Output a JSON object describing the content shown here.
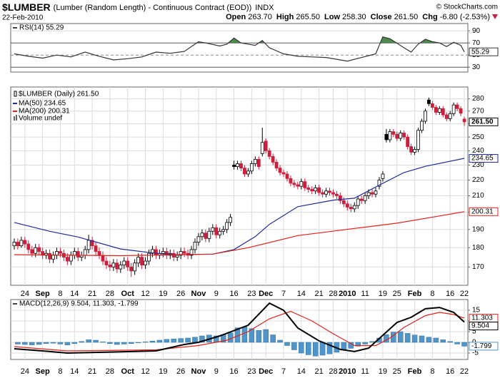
{
  "header": {
    "symbol": "$LUMBER",
    "name": "(Lumber (Random Length) - Continuous Contract (EOD))",
    "exchange": "INDX",
    "date": "22-Feb-2010",
    "copyright": "© StockCharts.com",
    "quote": [
      {
        "label": "Open",
        "value": "263.70"
      },
      {
        "label": "High",
        "value": "265.50"
      },
      {
        "label": "Low",
        "value": "258.30"
      },
      {
        "label": "Close",
        "value": "261.50"
      },
      {
        "label": "Chg",
        "value": "-6.80 (-2.53%)"
      }
    ]
  },
  "chart_data": [
    {
      "type": "line",
      "label": "RSI(14) 55.29",
      "xlim": [
        -1,
        128
      ],
      "ylim": [
        22,
        102
      ],
      "yticks": [
        90,
        70,
        50,
        30
      ],
      "grid": true,
      "vgrid": false,
      "overbought": 70,
      "oversold": 30,
      "fill_color": "#4f8a4f",
      "series": [
        {
          "color": "#333333",
          "x": [
            0,
            4,
            8,
            12,
            16,
            20,
            24,
            28,
            32,
            36,
            40,
            44,
            48,
            52,
            54,
            58,
            60,
            62,
            64,
            68,
            70,
            72,
            76,
            80,
            84,
            88,
            92,
            94,
            98,
            102,
            104,
            106,
            110,
            112,
            114,
            116,
            118,
            120,
            122,
            124,
            126,
            127
          ],
          "values": [
            52,
            48,
            45,
            50,
            47,
            55,
            48,
            42,
            44,
            47,
            55,
            53,
            56,
            72,
            70,
            65,
            68,
            78,
            70,
            66,
            74,
            62,
            52,
            48,
            47,
            46,
            42,
            40,
            46,
            52,
            80,
            77,
            62,
            55,
            68,
            76,
            72,
            70,
            64,
            71,
            66,
            55.29
          ]
        }
      ]
    },
    {
      "type": "candlestick",
      "label": "$LUMBER (Daily) 261.50",
      "volume_label": "Volume undef",
      "xlim": [
        -1,
        128
      ],
      "ylim": [
        161,
        290
      ],
      "log": true,
      "yticks": [
        170,
        180,
        190,
        200,
        210,
        220,
        230,
        240,
        250,
        260,
        270,
        280
      ],
      "grid": true,
      "vgrid": true,
      "up_color": "#000000",
      "down_color": "#cc1f3c",
      "close_label": "261.50",
      "xticks": [
        {
          "value": 3,
          "label": "24"
        },
        {
          "value": 8,
          "label": "Sep",
          "major": true
        },
        {
          "value": 13,
          "label": "8"
        },
        {
          "value": 17,
          "label": "14"
        },
        {
          "value": 22,
          "label": "21"
        },
        {
          "value": 27,
          "label": "28"
        },
        {
          "value": 32,
          "label": "Oct",
          "major": true
        },
        {
          "value": 37,
          "label": "12"
        },
        {
          "value": 42,
          "label": "19"
        },
        {
          "value": 47,
          "label": "26"
        },
        {
          "value": 52,
          "label": "Nov",
          "major": true
        },
        {
          "value": 57,
          "label": "9"
        },
        {
          "value": 62,
          "label": "16"
        },
        {
          "value": 67,
          "label": "23"
        },
        {
          "value": 71,
          "label": "Dec",
          "major": true
        },
        {
          "value": 76,
          "label": "7"
        },
        {
          "value": 81,
          "label": "14"
        },
        {
          "value": 86,
          "label": "21"
        },
        {
          "value": 90,
          "label": "28"
        },
        {
          "value": 94,
          "label": "2010",
          "major": true
        },
        {
          "value": 99,
          "label": "11"
        },
        {
          "value": 104,
          "label": "19"
        },
        {
          "value": 108,
          "label": "25"
        },
        {
          "value": 113,
          "label": "Feb",
          "major": true
        },
        {
          "value": 118,
          "label": "8"
        },
        {
          "value": 123,
          "label": "16"
        },
        {
          "value": 127,
          "label": "22"
        }
      ],
      "open": [
        181,
        183,
        181,
        184,
        182,
        179,
        177,
        180,
        178,
        176,
        177,
        174,
        176,
        178,
        177,
        175,
        173,
        176,
        178,
        175,
        176,
        179,
        184,
        181,
        178,
        176,
        173,
        171,
        170,
        172,
        169,
        171,
        173,
        170,
        168,
        172,
        175,
        171,
        173,
        177,
        179,
        176,
        177,
        178,
        176,
        177,
        175,
        176,
        178,
        177,
        176,
        179,
        183,
        186,
        188,
        185,
        189,
        191,
        187,
        189,
        190,
        194,
        230,
        229,
        231,
        228,
        224,
        226,
        231,
        234,
        238,
        247,
        240,
        236,
        232,
        228,
        225,
        224,
        221,
        218,
        217,
        216,
        219,
        215,
        214,
        213,
        215,
        212,
        211,
        213,
        212,
        211,
        210,
        207,
        205,
        203,
        202,
        204,
        208,
        207,
        210,
        212,
        211,
        216,
        221,
        252,
        248,
        254,
        252,
        249,
        253,
        250,
        243,
        239,
        241,
        255,
        262,
        279,
        276,
        273,
        269,
        272,
        267,
        264,
        268,
        275,
        272,
        263.7
      ],
      "high": [
        185,
        185,
        186,
        186,
        184,
        181,
        182,
        182,
        180,
        179,
        179,
        178,
        180,
        180,
        179,
        177,
        178,
        180,
        180,
        178,
        181,
        187,
        186,
        183,
        180,
        178,
        175,
        173,
        174,
        174,
        173,
        175,
        175,
        172,
        174,
        177,
        177,
        175,
        179,
        181,
        181,
        179,
        180,
        180,
        179,
        179,
        178,
        180,
        180,
        179,
        181,
        185,
        188,
        190,
        190,
        191,
        193,
        193,
        191,
        192,
        196,
        199,
        233,
        233,
        233,
        230,
        228,
        233,
        236,
        236,
        257,
        249,
        242,
        238,
        234,
        230,
        227,
        226,
        223,
        220,
        219,
        221,
        221,
        217,
        216,
        217,
        217,
        214,
        215,
        215,
        214,
        213,
        212,
        209,
        207,
        205,
        206,
        210,
        210,
        212,
        214,
        214,
        215,
        222,
        226,
        256,
        256,
        256,
        254,
        255,
        255,
        252,
        245,
        243,
        257,
        264,
        272,
        281,
        278,
        275,
        274,
        274,
        269,
        270,
        277,
        277,
        274,
        265.5
      ],
      "low": [
        179,
        179,
        180,
        180,
        177,
        175,
        175,
        176,
        174,
        174,
        172,
        172,
        174,
        175,
        173,
        171,
        171,
        174,
        173,
        173,
        174,
        177,
        179,
        176,
        174,
        171,
        169,
        168,
        168,
        167,
        167,
        169,
        168,
        165,
        166,
        170,
        169,
        169,
        171,
        175,
        174,
        174,
        175,
        174,
        174,
        173,
        173,
        174,
        175,
        174,
        174,
        177,
        181,
        184,
        183,
        183,
        187,
        185,
        185,
        187,
        188,
        192,
        227,
        227,
        226,
        222,
        222,
        224,
        229,
        227,
        236,
        238,
        234,
        230,
        226,
        223,
        222,
        219,
        216,
        215,
        214,
        214,
        213,
        212,
        211,
        211,
        210,
        209,
        209,
        210,
        209,
        208,
        205,
        203,
        201,
        200,
        200,
        202,
        205,
        205,
        208,
        209,
        209,
        214,
        219,
        246,
        246,
        250,
        247,
        247,
        248,
        241,
        237,
        237,
        239,
        253,
        260,
        274,
        271,
        267,
        267,
        265,
        262,
        262,
        266,
        270,
        266,
        258.3
      ],
      "close": [
        183,
        181,
        184,
        182,
        179,
        177,
        180,
        178,
        176,
        177,
        174,
        176,
        178,
        177,
        175,
        173,
        176,
        178,
        175,
        176,
        179,
        184,
        181,
        178,
        176,
        173,
        171,
        170,
        172,
        169,
        171,
        173,
        170,
        168,
        172,
        175,
        171,
        173,
        177,
        179,
        176,
        177,
        178,
        176,
        177,
        175,
        176,
        178,
        177,
        176,
        179,
        183,
        186,
        188,
        185,
        189,
        191,
        187,
        189,
        190,
        194,
        197,
        229,
        231,
        228,
        224,
        226,
        231,
        234,
        229,
        246,
        240,
        236,
        232,
        228,
        225,
        224,
        221,
        218,
        217,
        216,
        219,
        215,
        214,
        213,
        215,
        212,
        211,
        213,
        212,
        211,
        210,
        207,
        205,
        203,
        202,
        204,
        208,
        207,
        210,
        212,
        211,
        213,
        220,
        224,
        248,
        254,
        252,
        249,
        253,
        250,
        243,
        239,
        241,
        255,
        262,
        270,
        276,
        273,
        269,
        272,
        267,
        264,
        268,
        275,
        272,
        268.3,
        261.5
      ],
      "series": [
        {
          "name": "MA(50) 234.65",
          "color": "#1f2a9c",
          "x": [
            0,
            10,
            18,
            30,
            40,
            46,
            56,
            62,
            68,
            72,
            80,
            90,
            96,
            104,
            110,
            116,
            127
          ],
          "values": [
            194,
            189,
            185.8,
            179.3,
            177,
            176.3,
            176.6,
            179,
            186,
            192.9,
            203.3,
            207.3,
            208.5,
            217.9,
            225,
            229.2,
            234.65
          ]
        },
        {
          "name": "MA(200) 200.31",
          "color": "#e3221b",
          "x": [
            0,
            30,
            56,
            66,
            80,
            96,
            108,
            120,
            127
          ],
          "values": [
            176.3,
            175.8,
            176.6,
            180,
            186.6,
            190.6,
            193.6,
            197.8,
            200.31
          ]
        }
      ]
    },
    {
      "type": "line",
      "label": "MACD(12,26,9) 9.504, 11.303, -1.799",
      "xlim": [
        -1,
        128
      ],
      "ylim": [
        -8,
        20
      ],
      "yticks": [
        15,
        10,
        5,
        0,
        -5
      ],
      "grid": true,
      "vgrid": true,
      "series": [
        {
          "color": "#4f95c9",
          "style": "histogram",
          "x": [
            1,
            3,
            5,
            7,
            9,
            11,
            13,
            15,
            17,
            19,
            21,
            23,
            25,
            27,
            29,
            31,
            33,
            35,
            37,
            39,
            41,
            43,
            45,
            47,
            49,
            51,
            53,
            55,
            57,
            59,
            61,
            63,
            65,
            67,
            69,
            71,
            73,
            75,
            77,
            79,
            81,
            83,
            85,
            87,
            89,
            91,
            93,
            95,
            97,
            99,
            101,
            103,
            105,
            107,
            109,
            111,
            113,
            115,
            117,
            119,
            121,
            123,
            125,
            127
          ],
          "values": [
            -0.8,
            -1,
            -1.2,
            -1,
            -0.6,
            -0.4,
            -0.8,
            -1.2,
            -0.6,
            0.4,
            1.2,
            1,
            0.2,
            -0.6,
            -1,
            -0.8,
            -0.6,
            -0.2,
            0.2,
            0.6,
            1,
            1.4,
            1.6,
            1.8,
            2,
            2.4,
            3,
            3.4,
            3,
            3.6,
            4.4,
            6.8,
            7.2,
            6.4,
            5.6,
            6,
            3.5,
            1,
            -1.5,
            -3.5,
            -5,
            -5.8,
            -6.4,
            -6,
            -5.4,
            -4.6,
            -3.6,
            -2.8,
            -1.8,
            -0.8,
            0.4,
            2,
            3.6,
            4.8,
            5,
            4.2,
            3.4,
            3,
            2.4,
            2,
            1.2,
            0.4,
            -0.8,
            -1.799
          ]
        },
        {
          "color": "#e3221b",
          "x": [
            0,
            15,
            40,
            52,
            60,
            66,
            72,
            78,
            84,
            90,
            96,
            102,
            106,
            110,
            116,
            120,
            124,
            127
          ],
          "values": [
            -2,
            -4,
            -3.5,
            -1.5,
            1,
            5,
            11,
            14.5,
            10,
            4,
            -1.5,
            -1.5,
            2,
            7,
            12.5,
            14,
            13,
            11.303
          ]
        },
        {
          "color": "#000000",
          "x": [
            0,
            8,
            15,
            28,
            40,
            48,
            52,
            58,
            66,
            72,
            76,
            80,
            86,
            92,
            96,
            100,
            104,
            108,
            112,
            116,
            120,
            124,
            127
          ],
          "values": [
            -3,
            -4,
            -5,
            -4.5,
            -4,
            -1,
            0,
            3,
            8,
            18.3,
            15,
            6.7,
            0.7,
            -3.3,
            -4.3,
            -2.7,
            3.3,
            9.3,
            11.7,
            15.7,
            16.3,
            14,
            9.504
          ]
        }
      ]
    }
  ]
}
